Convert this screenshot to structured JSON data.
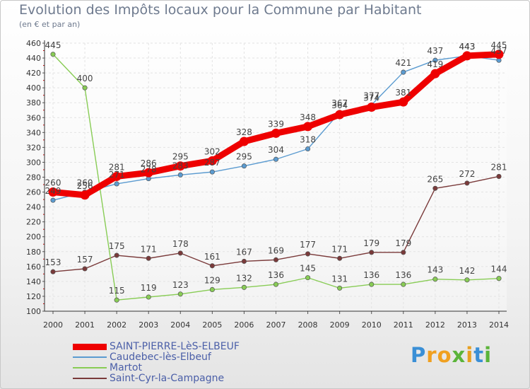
{
  "title": "Evolution des Impôts locaux pour la Commune par Habitant",
  "subtitle": "(en € et par an)",
  "logo": {
    "letters": [
      "P",
      "r",
      "o",
      "x",
      "i",
      "t",
      "i"
    ],
    "colors": [
      "#3a8fd6",
      "#f0a020",
      "#f0a020",
      "#5bb43a",
      "#e8a020",
      "#3a8fd6",
      "#5bb43a"
    ]
  },
  "chart_data": {
    "type": "line",
    "title": "Evolution des Impôts locaux pour la Commune par Habitant",
    "ylabel": "(en € et par an)",
    "ylim": [
      100,
      460
    ],
    "yticks": [
      100,
      120,
      140,
      160,
      180,
      200,
      220,
      240,
      260,
      280,
      300,
      320,
      340,
      360,
      380,
      400,
      420,
      440,
      460
    ],
    "x": [
      "2000",
      "2001",
      "2002",
      "2003",
      "2004",
      "2005",
      "2006",
      "2007",
      "2008",
      "2009",
      "2010",
      "2011",
      "2012",
      "2013",
      "2014"
    ],
    "grid": true,
    "legend": "bottom-left",
    "series": [
      {
        "name": "SAINT-PIERRE-LèS-ELBEUF",
        "color": "#ee0000",
        "values": [
          260,
          256,
          281,
          286,
          295,
          302,
          328,
          339,
          348,
          364,
          374,
          381,
          419,
          443,
          445
        ],
        "labels": [
          "260",
          "256",
          "281",
          "286",
          "295",
          "302",
          "328",
          "339",
          "348",
          "364",
          "374",
          "381",
          "419",
          "443",
          "445"
        ]
      },
      {
        "name": "Caudebec-lès-Elbeuf",
        "color": "#5b9bd0",
        "values": [
          249,
          260,
          271,
          278,
          283,
          287,
          295,
          304,
          318,
          367,
          377,
          421,
          437,
          443,
          437
        ],
        "labels": [
          "249",
          "260",
          "271",
          "278",
          "283",
          "287",
          "295",
          "304",
          "318",
          "367",
          "377",
          "421",
          "437",
          "443",
          "437"
        ]
      },
      {
        "name": "Martot",
        "color": "#88cc55",
        "values": [
          445,
          400,
          115,
          119,
          123,
          129,
          132,
          136,
          145,
          131,
          136,
          136,
          143,
          142,
          144
        ],
        "labels": [
          "445",
          "400",
          "115",
          "119",
          "123",
          "129",
          "132",
          "136",
          "145",
          "131",
          "136",
          "136",
          "143",
          "142",
          "144"
        ]
      },
      {
        "name": "Saint-Cyr-la-Campagne",
        "color": "#7a3a3a",
        "values": [
          153,
          157,
          175,
          171,
          178,
          161,
          167,
          169,
          177,
          171,
          179,
          179,
          265,
          272,
          281
        ],
        "labels": [
          "153",
          "157",
          "175",
          "171",
          "178",
          "161",
          "167",
          "169",
          "177",
          "171",
          "179",
          "179",
          "265",
          "272",
          "281"
        ]
      }
    ]
  }
}
